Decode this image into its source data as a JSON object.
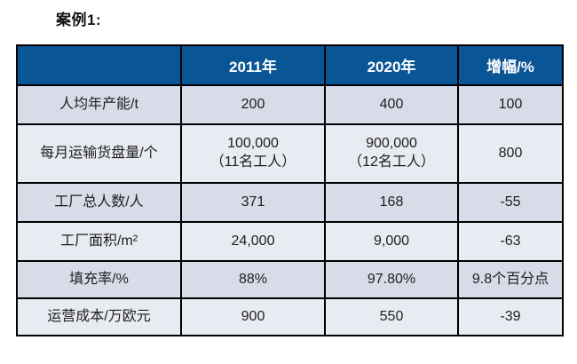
{
  "page": {
    "title": "案例1:"
  },
  "table": {
    "header": {
      "metric": "",
      "col2011": "2011年",
      "col2020": "2020年",
      "delta": "增幅/%"
    },
    "rows": [
      {
        "label": "人均年产能/t",
        "y2011": "200",
        "y2020": "400",
        "delta": "100"
      },
      {
        "label": "每月运输货盘量/个",
        "y2011": "100,000\n（11名工人）",
        "y2020": "900,000\n（12名工人）",
        "delta": "800"
      },
      {
        "label": "工厂总人数/人",
        "y2011": "371",
        "y2020": "168",
        "delta": "-55"
      },
      {
        "label": "工厂面积/m²",
        "y2011": "24,000",
        "y2020": "9,000",
        "delta": "-63"
      },
      {
        "label": "填充率/%",
        "y2011": "88%",
        "y2020": "97.80%",
        "delta": "9.8个百分点"
      },
      {
        "label": "运营成本/万欧元",
        "y2011": "900",
        "y2020": "550",
        "delta": "-39"
      }
    ],
    "colors": {
      "header_bg": "#0a5596",
      "header_text": "#ffffff",
      "row_odd_bg": "#d8dbe8",
      "row_even_bg": "#e9ebf3",
      "border": "#000000",
      "body_text": "#1f1f1f"
    }
  }
}
